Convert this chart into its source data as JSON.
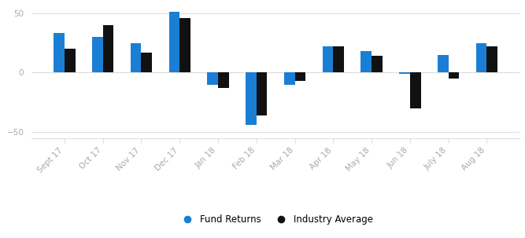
{
  "categories": [
    "Sept 17",
    "Oct 17",
    "Nov 17",
    "Dec 17",
    "Jan 18",
    "Feb 18",
    "Mar 18",
    "Apr 18",
    "May 18",
    "Jun 18",
    "July 18",
    "Aug 18"
  ],
  "fund_returns": [
    33,
    30,
    25,
    51,
    -10,
    -44,
    -10,
    22,
    18,
    -1,
    15,
    25
  ],
  "industry_avg": [
    20,
    40,
    17,
    46,
    -13,
    -36,
    -7,
    22,
    14,
    -30,
    -5,
    22
  ],
  "fund_color": "#1a7fd4",
  "industry_color": "#111111",
  "ylim": [
    -55,
    55
  ],
  "yticks": [
    -50,
    0,
    50
  ],
  "legend_labels": [
    "Fund Returns",
    "Industry Average"
  ],
  "bar_width": 0.28,
  "background_color": "#ffffff",
  "grid_color": "#dddddd",
  "tick_color": "#aaaaaa",
  "tick_fontsize": 7.5
}
